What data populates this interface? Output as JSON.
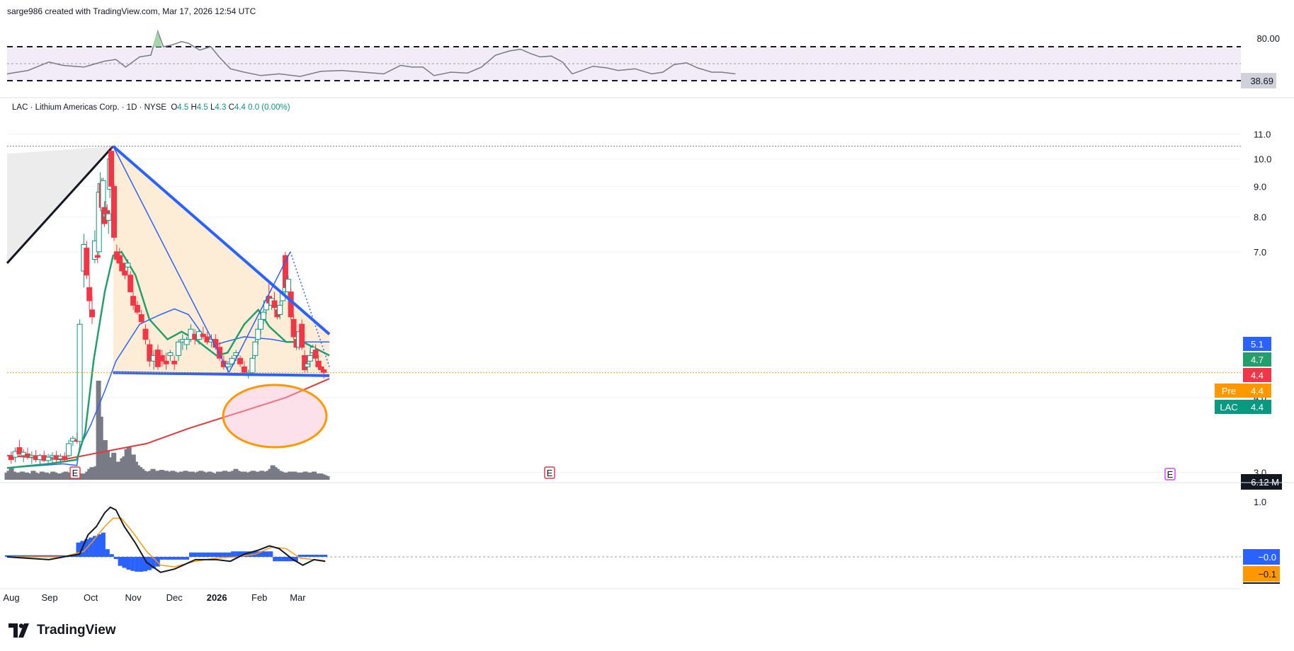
{
  "header": {
    "credit": "sarge986 created with TradingView.com, Mar 17, 2026 12:54 UTC"
  },
  "legend": {
    "symbol": "LAC · Lithium Americas Corp. · 1D · NYSE",
    "open_label": "O",
    "open": "4.5",
    "high_label": "H",
    "high": "4.5",
    "low_label": "L",
    "low": "4.3",
    "close_label": "C",
    "close": "4.4",
    "change": "0.0 (0.00%)"
  },
  "branding": {
    "name": "TradingView"
  },
  "colors": {
    "up": "#089981",
    "down": "#f23645",
    "trend": "#2962ff",
    "wedge_fill": "#fdebd3",
    "sma_green": "#22a06b",
    "sma_red": "#f23645",
    "signal": "#ff9800",
    "rsi": "#7e57c2"
  },
  "price_badges": [
    {
      "text": "5.1",
      "color": "#2962ff",
      "value": 5.1
    },
    {
      "text": "4.7",
      "color": "#22a06b",
      "value": 4.7
    },
    {
      "text": "4.4",
      "color": "#f23645",
      "value": 4.4
    },
    {
      "label": "Pre",
      "text": "4.4",
      "color": "#ff9800",
      "value": 4.4
    },
    {
      "label": "LAC",
      "text": "4.4",
      "color": "#089981",
      "value": 4.4
    }
  ],
  "rsi_badge": "38.69",
  "volume_badge": "6.12 M",
  "macd_badges": [
    "−0.0",
    "−0.1"
  ],
  "earnings_marker": "E",
  "chart_data": [
    {
      "type": "candlestick",
      "title": "LAC · Lithium Americas Corp. · 1D · NYSE",
      "x_ticks": [
        "Aug",
        "Sep",
        "Oct",
        "Nov",
        "Dec",
        "2026",
        "Feb",
        "Mar"
      ],
      "y_ticks": [
        "11.0",
        "10.0",
        "9.0",
        "8.0",
        "7.0",
        "4.0",
        "3.0"
      ],
      "y_scale": "log",
      "ylim": [
        2.9,
        11.6
      ],
      "ohlc_approx": [
        {
          "date": "Sep 23",
          "o": 3.3,
          "h": 5.4,
          "l": 3.1,
          "c": 5.4
        },
        {
          "date": "Sep 25",
          "o": 6.7,
          "h": 7.5,
          "l": 6.2,
          "c": 7.3
        },
        {
          "date": "Oct 1",
          "o": 7.4,
          "h": 8.1,
          "l": 6.8,
          "c": 7.1
        },
        {
          "date": "Oct 3",
          "o": 8.6,
          "h": 9.4,
          "l": 8.2,
          "c": 9.0
        },
        {
          "date": "Oct 10",
          "o": 8.0,
          "h": 8.6,
          "l": 7.6,
          "c": 7.8
        },
        {
          "date": "Oct 14",
          "o": 8.9,
          "h": 10.5,
          "l": 8.6,
          "c": 10.4
        },
        {
          "date": "Oct 16",
          "o": 9.0,
          "h": 9.1,
          "l": 7.3,
          "c": 7.4
        },
        {
          "date": "Oct 23",
          "o": 6.8,
          "h": 7.1,
          "l": 6.3,
          "c": 6.4
        },
        {
          "date": "Nov 3",
          "o": 5.6,
          "h": 5.7,
          "l": 5.3,
          "c": 5.4
        },
        {
          "date": "Nov 6",
          "o": 4.8,
          "h": 5.0,
          "l": 4.4,
          "c": 4.5
        },
        {
          "date": "Dec 1",
          "o": 5.2,
          "h": 5.4,
          "l": 5.0,
          "c": 5.3
        },
        {
          "date": "Dec 30",
          "o": 4.4,
          "h": 4.6,
          "l": 4.35,
          "c": 4.4
        },
        {
          "date": "Jan 2",
          "o": 4.5,
          "h": 4.9,
          "l": 4.4,
          "c": 4.8
        },
        {
          "date": "Jan 14",
          "o": 5.9,
          "h": 6.3,
          "l": 5.7,
          "c": 6.1
        },
        {
          "date": "Jan 22",
          "o": 6.9,
          "h": 7.0,
          "l": 6.1,
          "c": 6.3
        },
        {
          "date": "Jan 28",
          "o": 5.8,
          "h": 5.9,
          "l": 5.2,
          "c": 5.3
        },
        {
          "date": "Feb 3",
          "o": 5.0,
          "h": 5.1,
          "l": 4.4,
          "c": 4.5
        },
        {
          "date": "Feb 24",
          "o": 4.9,
          "h": 5.3,
          "l": 4.9,
          "c": 5.1
        },
        {
          "date": "Mar 10",
          "o": 4.6,
          "h": 4.7,
          "l": 4.4,
          "c": 4.5
        },
        {
          "date": "Mar 16",
          "o": 4.5,
          "h": 4.5,
          "l": 4.3,
          "c": 4.4
        }
      ],
      "overlays": [
        "SMA green",
        "SMA blue",
        "SMA red (long)"
      ],
      "drawings": [
        "descending wedge",
        "support line ~4.4",
        "resistance from 10.5 to 5.1"
      ]
    },
    {
      "type": "line",
      "title": "",
      "y_ticks": [
        "80.00"
      ],
      "last_value": 38.69
    },
    {
      "type": "bar",
      "title": "",
      "last_value_label": "6.12 M"
    },
    {
      "type": "bar",
      "title": "",
      "y_ticks": [
        "1.0"
      ],
      "last_values": [
        -0.0,
        -0.1
      ]
    }
  ]
}
